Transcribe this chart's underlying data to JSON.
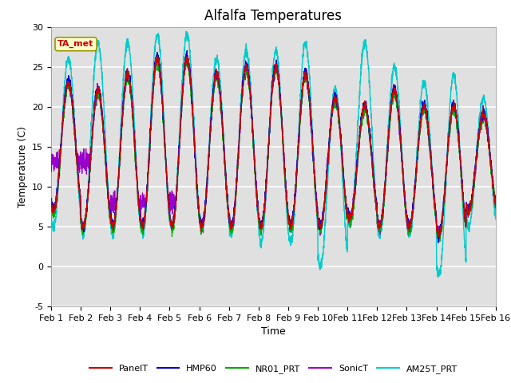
{
  "title": "Alfalfa Temperatures",
  "xlabel": "Time",
  "ylabel": "Temperature (C)",
  "ylim": [
    -5,
    30
  ],
  "xlim": [
    0,
    15
  ],
  "xtick_labels": [
    "Feb 1",
    "Feb 2",
    "Feb 3",
    "Feb 4",
    "Feb 5",
    "Feb 6",
    "Feb 7",
    "Feb 8",
    "Feb 9",
    "Feb 10",
    "Feb 11",
    "Feb 12",
    "Feb 13",
    "Feb 14",
    "Feb 15",
    "Feb 16"
  ],
  "xtick_positions": [
    0,
    1,
    2,
    3,
    4,
    5,
    6,
    7,
    8,
    9,
    10,
    11,
    12,
    13,
    14,
    15
  ],
  "ytick_values": [
    -5,
    0,
    5,
    10,
    15,
    20,
    25,
    30
  ],
  "line_colors": {
    "PanelT": "#cc0000",
    "HMP60": "#0000cc",
    "NR01_PRT": "#00aa00",
    "SonicT": "#9900cc",
    "AM25T_PRT": "#00cccc"
  },
  "annotation_text": "TA_met",
  "annotation_color": "#cc0000",
  "annotation_bg": "#ffffcc",
  "background_color": "#e0e0e0",
  "figure_bg": "#ffffff",
  "grid_color": "#ffffff",
  "title_fontsize": 12,
  "axis_label_fontsize": 9,
  "tick_fontsize": 8,
  "legend_fontsize": 8
}
